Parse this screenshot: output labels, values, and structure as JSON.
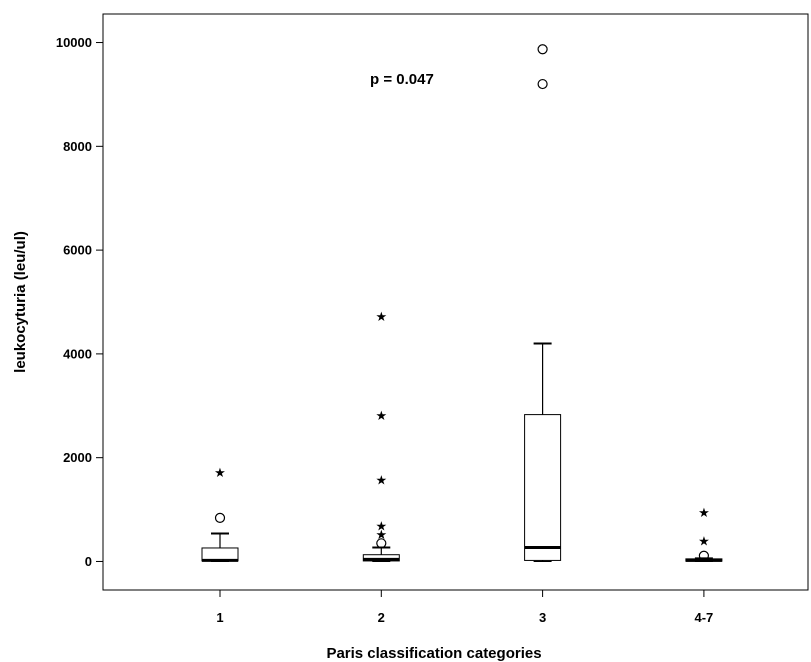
{
  "chart_data": {
    "type": "boxplot",
    "title": "",
    "xlabel": "Paris classification categories",
    "ylabel": "leukocyturia (leu/ul)",
    "ylim": [
      -550,
      10550
    ],
    "yticks": [
      0,
      2000,
      4000,
      6000,
      8000,
      10000
    ],
    "grid": false,
    "legend": "none",
    "annotation": "p = 0.047",
    "categories": [
      "1",
      "2",
      "3",
      "4-7"
    ],
    "boxes": [
      {
        "category": "1",
        "whisker_low": 0,
        "q1": 10,
        "median": 20,
        "q3": 260,
        "whisker_high": 540,
        "outliers": [
          840
        ],
        "extremes": [
          1720
        ]
      },
      {
        "category": "2",
        "whisker_low": 0,
        "q1": 10,
        "median": 40,
        "q3": 130,
        "whisker_high": 270,
        "outliers": [
          350
        ],
        "extremes": [
          530,
          690,
          1580,
          2820,
          4730
        ]
      },
      {
        "category": "3",
        "whisker_low": 0,
        "q1": 20,
        "median": 270,
        "q3": 2830,
        "whisker_high": 4200,
        "outliers": [
          9200,
          9870
        ],
        "extremes": []
      },
      {
        "category": "4-7",
        "whisker_low": 0,
        "q1": 5,
        "median": 20,
        "q3": 50,
        "whisker_high": 60,
        "outliers": [
          110
        ],
        "extremes": [
          400,
          950
        ]
      }
    ]
  }
}
